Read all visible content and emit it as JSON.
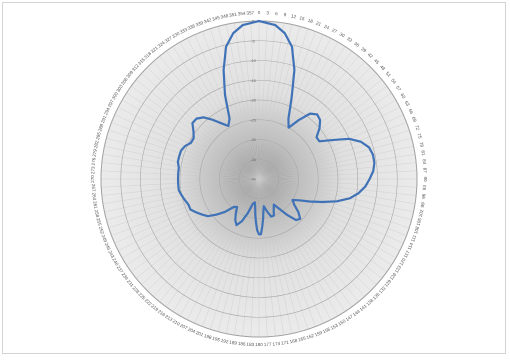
{
  "chart_data": {
    "type": "polar",
    "title": "",
    "angular_unit": "degrees",
    "angular_direction": "clockwise",
    "zero_position": "top",
    "angular_tick_step": 3,
    "radial_range": [
      -40,
      0
    ],
    "radial_ticks": [
      0,
      -5,
      -10,
      -15,
      -20,
      -25,
      -30,
      -35,
      -40
    ],
    "radial_tick_labels": [
      "0",
      "-5",
      "-10",
      "-15",
      "-20",
      "-25",
      "-30",
      "-35",
      "-40"
    ],
    "grid": true,
    "legend": "none",
    "series": [
      {
        "color": "#3f72b6",
        "theta": [
          0,
          6,
          10,
          14,
          18,
          22,
          26,
          30,
          34,
          38,
          42,
          46,
          50,
          54,
          58,
          62,
          66,
          70,
          74,
          78,
          82,
          86,
          90,
          94,
          98,
          102,
          106,
          110,
          114,
          118,
          122,
          126,
          130,
          134,
          138,
          142,
          146,
          150,
          154,
          158,
          162,
          166,
          170,
          172,
          174,
          176,
          178,
          180,
          182,
          184,
          186,
          188,
          190,
          194,
          198,
          202,
          206,
          210,
          214,
          218,
          222,
          226,
          230,
          234,
          238,
          242,
          246,
          250,
          254,
          258,
          262,
          266,
          270,
          274,
          278,
          282,
          286,
          290,
          294,
          298,
          302,
          306,
          310,
          314,
          318,
          322,
          326,
          330,
          334,
          338,
          342,
          346,
          350,
          354,
          360
        ],
        "r": [
          0,
          -0.8,
          -2.5,
          -5.5,
          -11,
          -18,
          -23,
          -25,
          -22,
          -19,
          -18,
          -18.5,
          -20,
          -22,
          -22,
          -19,
          -15,
          -12.5,
          -11,
          -10.5,
          -10.5,
          -11,
          -12,
          -13,
          -14.5,
          -16.5,
          -19.5,
          -23,
          -26,
          -28.5,
          -30,
          -29,
          -27,
          -25.5,
          -26,
          -28.5,
          -31,
          -32.5,
          -31.5,
          -30,
          -30,
          -31.5,
          -33,
          -32,
          -30,
          -28,
          -26,
          -26,
          -27,
          -29,
          -31,
          -33,
          -34,
          -33.5,
          -31,
          -28.5,
          -27,
          -28,
          -29.5,
          -31,
          -30.5,
          -28,
          -26,
          -24,
          -23,
          -22,
          -21,
          -21,
          -20.5,
          -20,
          -19.5,
          -19.5,
          -19.5,
          -19.5,
          -19.5,
          -19,
          -19,
          -19,
          -19.5,
          -20.5,
          -20.5,
          -19.5,
          -18,
          -18,
          -19,
          -21,
          -23,
          -24.5,
          -23,
          -17,
          -11,
          -5.5,
          -2.5,
          -0.8,
          0
        ]
      }
    ]
  }
}
